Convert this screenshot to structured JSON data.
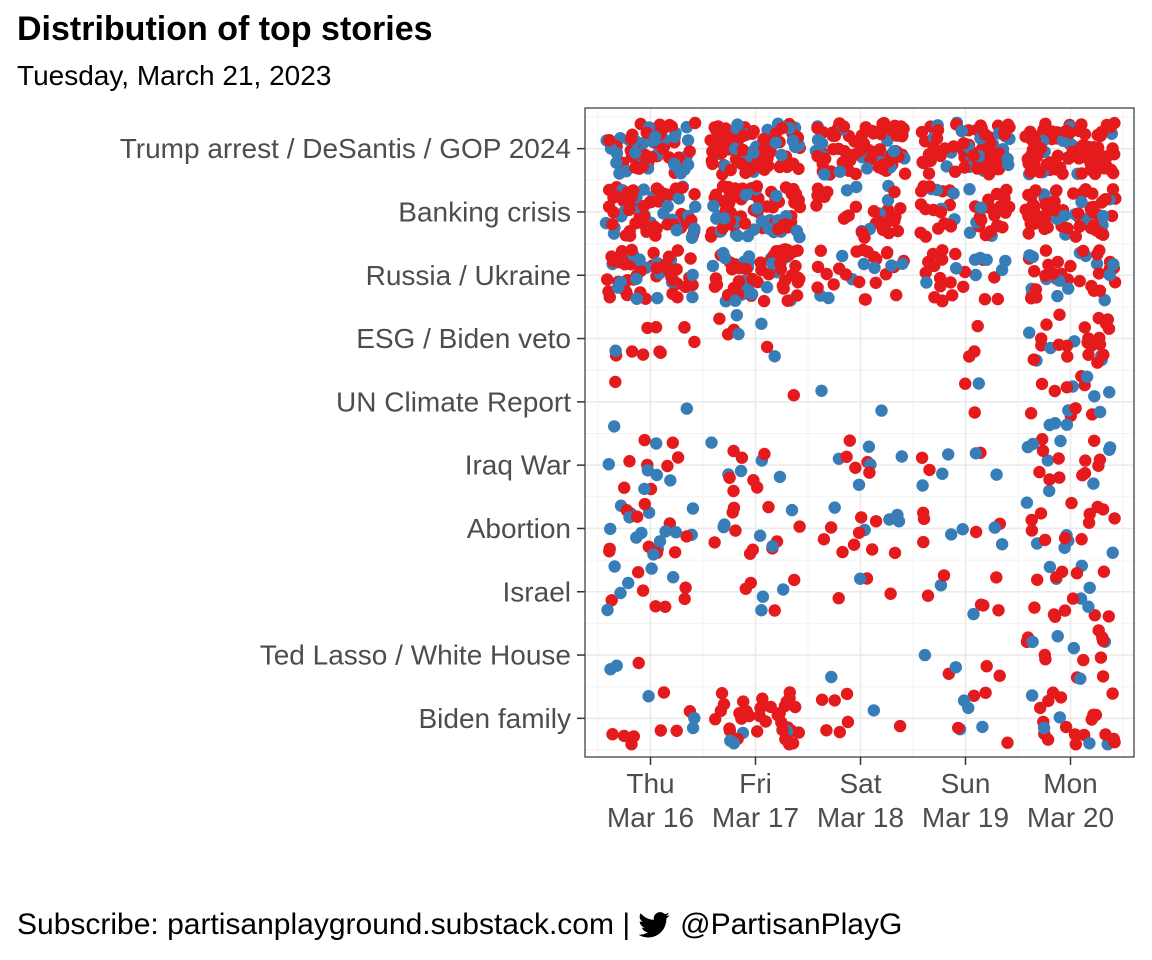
{
  "header": {
    "title": "Distribution of top stories",
    "subtitle": "Tuesday, March 21, 2023"
  },
  "footer": {
    "subscribe_text": "Subscribe: partisanplayground.substack.com |",
    "handle": "@PartisanPlayG",
    "icon": "twitter-bird-icon"
  },
  "colors": {
    "red": "#E41A1C",
    "blue": "#377EB8",
    "panel_border": "#333333",
    "grid": "#EBEBEB",
    "axis_text": "#4D4D4D"
  },
  "chart_data": {
    "type": "scatter",
    "title": "Distribution of top stories",
    "subtitle": "Tuesday, March 21, 2023",
    "xlabel": "",
    "ylabel": "",
    "grid": true,
    "legend": "none",
    "x_categories": [
      "Thu\nMar 16",
      "Fri\nMar 17",
      "Sat\nMar 18",
      "Sun\nMar 19",
      "Mon\nMar 20"
    ],
    "y_categories": [
      "Trump arrest / DeSantis / GOP 2024",
      "Banking crisis",
      "Russia / Ukraine",
      "ESG / Biden veto",
      "UN Climate Report",
      "Iraq War",
      "Abortion",
      "Israel",
      "Ted Lasso / White House",
      "Biden family"
    ],
    "series": [
      {
        "color": "red",
        "counts": [
          [
            40,
            60,
            70,
            60,
            95
          ],
          [
            50,
            60,
            25,
            35,
            55
          ],
          [
            40,
            45,
            22,
            20,
            28
          ],
          [
            9,
            4,
            0,
            3,
            22
          ],
          [
            1,
            1,
            0,
            2,
            9
          ],
          [
            8,
            7,
            5,
            3,
            12
          ],
          [
            10,
            10,
            9,
            5,
            12
          ],
          [
            7,
            4,
            3,
            6,
            12
          ],
          [
            1,
            0,
            0,
            3,
            11
          ],
          [
            8,
            35,
            7,
            4,
            18
          ]
        ]
      },
      {
        "color": "blue",
        "counts": [
          [
            30,
            25,
            18,
            20,
            10
          ],
          [
            25,
            25,
            8,
            10,
            12
          ],
          [
            18,
            20,
            8,
            8,
            14
          ],
          [
            2,
            4,
            0,
            0,
            6
          ],
          [
            2,
            0,
            2,
            1,
            9
          ],
          [
            6,
            5,
            5,
            5,
            8
          ],
          [
            14,
            5,
            5,
            4,
            6
          ],
          [
            6,
            3,
            1,
            2,
            6
          ],
          [
            2,
            0,
            1,
            2,
            5
          ],
          [
            3,
            4,
            1,
            4,
            5
          ]
        ]
      }
    ]
  }
}
